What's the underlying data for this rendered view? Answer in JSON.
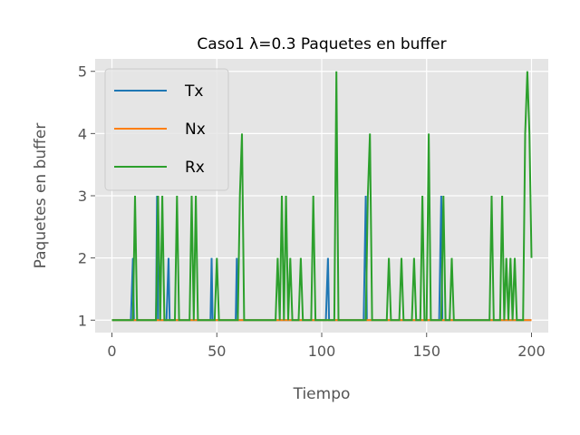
{
  "chart_data": {
    "type": "line",
    "title": "Caso1 λ=0.3 Paquetes en buffer",
    "xlabel": "Tiempo",
    "ylabel": "Paquetes en buffer",
    "xlim": [
      -8,
      208
    ],
    "ylim": [
      0.8,
      5.2
    ],
    "xticks": [
      "0",
      "50",
      "100",
      "150",
      "200"
    ],
    "yticks": [
      "1",
      "2",
      "3",
      "4",
      "5"
    ],
    "grid": true,
    "legend_position": "upper-left",
    "series": [
      {
        "name": "Tx",
        "color": "#1f77b4",
        "points": [
          [
            0,
            1
          ],
          [
            9,
            1
          ],
          [
            10,
            2
          ],
          [
            10.5,
            1
          ],
          [
            21,
            1
          ],
          [
            21.5,
            3
          ],
          [
            22,
            1
          ],
          [
            26,
            1
          ],
          [
            27,
            2
          ],
          [
            27.5,
            1
          ],
          [
            47,
            1
          ],
          [
            47.5,
            2
          ],
          [
            48,
            1
          ],
          [
            59,
            1
          ],
          [
            59.5,
            2
          ],
          [
            60,
            1
          ],
          [
            102,
            1
          ],
          [
            103,
            2
          ],
          [
            103.5,
            1
          ],
          [
            120,
            1
          ],
          [
            121,
            3
          ],
          [
            121.5,
            1
          ],
          [
            156,
            1
          ],
          [
            157,
            3
          ],
          [
            157.5,
            1
          ],
          [
            200,
            1
          ]
        ]
      },
      {
        "name": "Nx",
        "color": "#ff7f0e",
        "points": [
          [
            0,
            1
          ],
          [
            200,
            1
          ]
        ]
      },
      {
        "name": "Rx",
        "color": "#2ca02c",
        "points": [
          [
            0,
            1
          ],
          [
            10,
            1
          ],
          [
            11,
            3
          ],
          [
            12,
            1
          ],
          [
            21,
            1
          ],
          [
            22,
            3
          ],
          [
            23,
            1
          ],
          [
            24,
            3
          ],
          [
            25,
            1
          ],
          [
            30,
            1
          ],
          [
            31,
            3
          ],
          [
            32,
            1
          ],
          [
            37,
            1
          ],
          [
            38,
            3
          ],
          [
            39,
            1
          ],
          [
            40,
            3
          ],
          [
            41,
            1
          ],
          [
            49,
            1
          ],
          [
            50,
            2
          ],
          [
            51,
            1
          ],
          [
            60,
            1
          ],
          [
            61,
            3
          ],
          [
            62,
            4
          ],
          [
            63,
            1
          ],
          [
            78,
            1
          ],
          [
            79,
            2
          ],
          [
            80,
            1
          ],
          [
            81,
            3
          ],
          [
            82,
            1
          ],
          [
            83,
            3
          ],
          [
            84,
            1
          ],
          [
            85,
            2
          ],
          [
            86,
            1
          ],
          [
            89,
            1
          ],
          [
            90,
            2
          ],
          [
            91,
            1
          ],
          [
            95,
            1
          ],
          [
            96,
            3
          ],
          [
            97,
            1
          ],
          [
            106,
            1
          ],
          [
            107,
            5
          ],
          [
            108,
            1
          ],
          [
            121,
            1
          ],
          [
            122,
            3
          ],
          [
            123,
            4
          ],
          [
            124,
            1
          ],
          [
            131,
            1
          ],
          [
            132,
            2
          ],
          [
            133,
            1
          ],
          [
            137,
            1
          ],
          [
            138,
            2
          ],
          [
            139,
            1
          ],
          [
            143,
            1
          ],
          [
            144,
            2
          ],
          [
            145,
            1
          ],
          [
            147,
            1
          ],
          [
            148,
            3
          ],
          [
            149,
            1
          ],
          [
            150,
            1
          ],
          [
            151,
            4
          ],
          [
            152,
            1
          ],
          [
            157,
            1
          ],
          [
            158,
            3
          ],
          [
            159,
            1
          ],
          [
            161,
            1
          ],
          [
            162,
            2
          ],
          [
            163,
            1
          ],
          [
            180,
            1
          ],
          [
            181,
            3
          ],
          [
            182,
            1
          ],
          [
            185,
            1
          ],
          [
            186,
            3
          ],
          [
            187,
            1
          ],
          [
            188,
            2
          ],
          [
            189,
            1
          ],
          [
            190,
            2
          ],
          [
            191,
            1
          ],
          [
            192,
            2
          ],
          [
            193,
            1
          ],
          [
            196,
            1
          ],
          [
            197,
            4
          ],
          [
            198,
            5
          ],
          [
            199,
            4
          ],
          [
            200,
            2
          ]
        ]
      }
    ]
  }
}
